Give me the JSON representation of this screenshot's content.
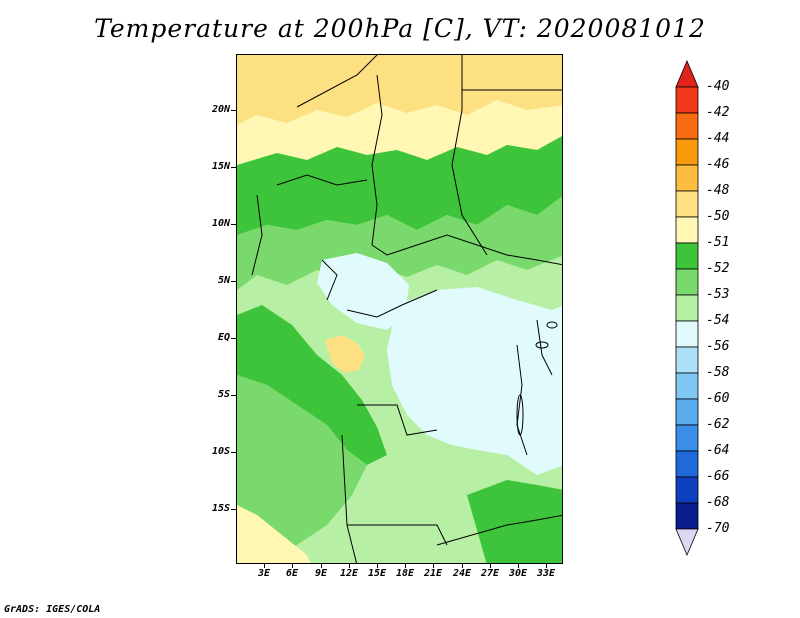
{
  "title": "Temperature at 200hPa [C], VT: 2020081012",
  "lat_labels": [
    "20N",
    "15N",
    "10N",
    "5N",
    "EQ",
    "5S",
    "10S",
    "15S"
  ],
  "lon_labels": [
    "3E",
    "6E",
    "9E",
    "12E",
    "15E",
    "18E",
    "21E",
    "24E",
    "27E",
    "30E",
    "33E"
  ],
  "colorbar": {
    "levels": [
      "-40",
      "-42",
      "-44",
      "-46",
      "-48",
      "-50",
      "-51",
      "-52",
      "-53",
      "-54",
      "-56",
      "-58",
      "-60",
      "-62",
      "-64",
      "-66",
      "-68",
      "-70"
    ],
    "colors": [
      "#e0231d",
      "#f0381a",
      "#f86c12",
      "#f99b0c",
      "#fcbd40",
      "#fde081",
      "#fff7b3",
      "#3ec43a",
      "#7ad96c",
      "#b7f0a5",
      "#e1fbfd",
      "#aee0f9",
      "#80c7f4",
      "#59acee",
      "#3a8ee6",
      "#2069d8",
      "#0d3fbe",
      "#0a1c8c",
      "#dcd8f3"
    ]
  },
  "footer": "GrADS: IGES/COLA"
}
